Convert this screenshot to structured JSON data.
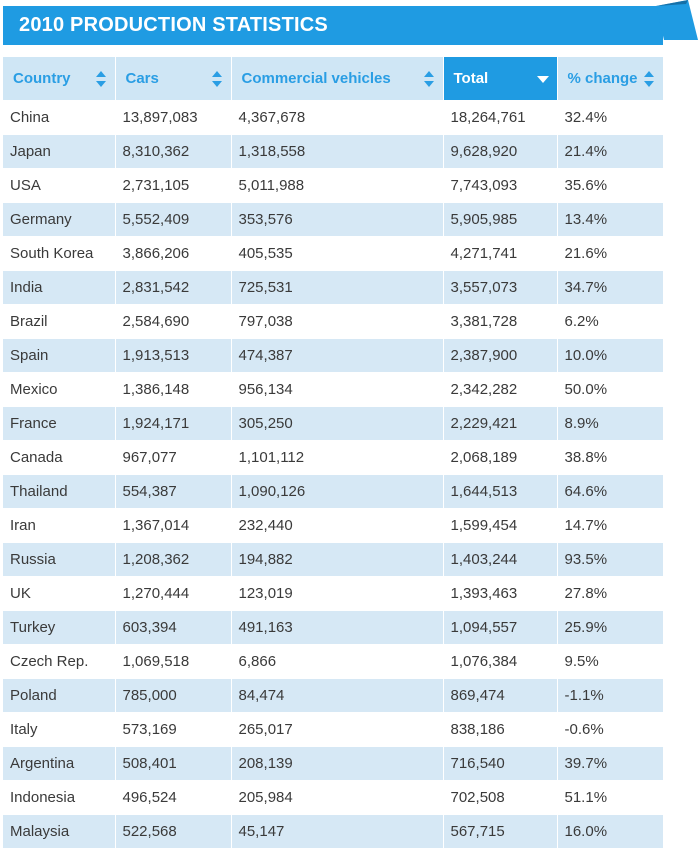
{
  "title": "2010 PRODUCTION STATISTICS",
  "colors": {
    "accent": "#1f9be2",
    "header_bg": "#cfe6f5",
    "row_alt": "#d6e8f5"
  },
  "columns": [
    {
      "label": "Country",
      "sort_icon": "sort-both-icon"
    },
    {
      "label": "Cars",
      "sort_icon": "sort-both-icon"
    },
    {
      "label": "Commercial vehicles",
      "sort_icon": "sort-both-icon"
    },
    {
      "label": "Total",
      "sort_icon": "sort-desc-icon"
    },
    {
      "label": "% change",
      "sort_icon": "sort-both-icon"
    }
  ],
  "rows": [
    [
      "China",
      "13,897,083",
      "4,367,678",
      "18,264,761",
      "32.4%"
    ],
    [
      "Japan",
      "8,310,362",
      "1,318,558",
      "9,628,920",
      "21.4%"
    ],
    [
      "USA",
      "2,731,105",
      "5,011,988",
      "7,743,093",
      "35.6%"
    ],
    [
      "Germany",
      "5,552,409",
      "353,576",
      "5,905,985",
      "13.4%"
    ],
    [
      "South Korea",
      "3,866,206",
      "405,535",
      "4,271,741",
      "21.6%"
    ],
    [
      "India",
      "2,831,542",
      "725,531",
      "3,557,073",
      "34.7%"
    ],
    [
      "Brazil",
      "2,584,690",
      "797,038",
      "3,381,728",
      "6.2%"
    ],
    [
      "Spain",
      "1,913,513",
      "474,387",
      "2,387,900",
      "10.0%"
    ],
    [
      "Mexico",
      "1,386,148",
      "956,134",
      "2,342,282",
      "50.0%"
    ],
    [
      "France",
      "1,924,171",
      "305,250",
      "2,229,421",
      "8.9%"
    ],
    [
      "Canada",
      "967,077",
      "1,101,112",
      "2,068,189",
      "38.8%"
    ],
    [
      "Thailand",
      "554,387",
      "1,090,126",
      "1,644,513",
      "64.6%"
    ],
    [
      "Iran",
      "1,367,014",
      "232,440",
      "1,599,454",
      "14.7%"
    ],
    [
      "Russia",
      "1,208,362",
      "194,882",
      "1,403,244",
      "93.5%"
    ],
    [
      "UK",
      "1,270,444",
      "123,019",
      "1,393,463",
      "27.8%"
    ],
    [
      "Turkey",
      "603,394",
      "491,163",
      "1,094,557",
      "25.9%"
    ],
    [
      "Czech Rep.",
      "1,069,518",
      "6,866",
      "1,076,384",
      "9.5%"
    ],
    [
      "Poland",
      "785,000",
      "84,474",
      "869,474",
      "-1.1%"
    ],
    [
      "Italy",
      "573,169",
      "265,017",
      "838,186",
      "-0.6%"
    ],
    [
      "Argentina",
      "508,401",
      "208,139",
      "716,540",
      "39.7%"
    ],
    [
      "Indonesia",
      "496,524",
      "205,984",
      "702,508",
      "51.1%"
    ],
    [
      "Malaysia",
      "522,568",
      "45,147",
      "567,715",
      "16.0%"
    ]
  ]
}
